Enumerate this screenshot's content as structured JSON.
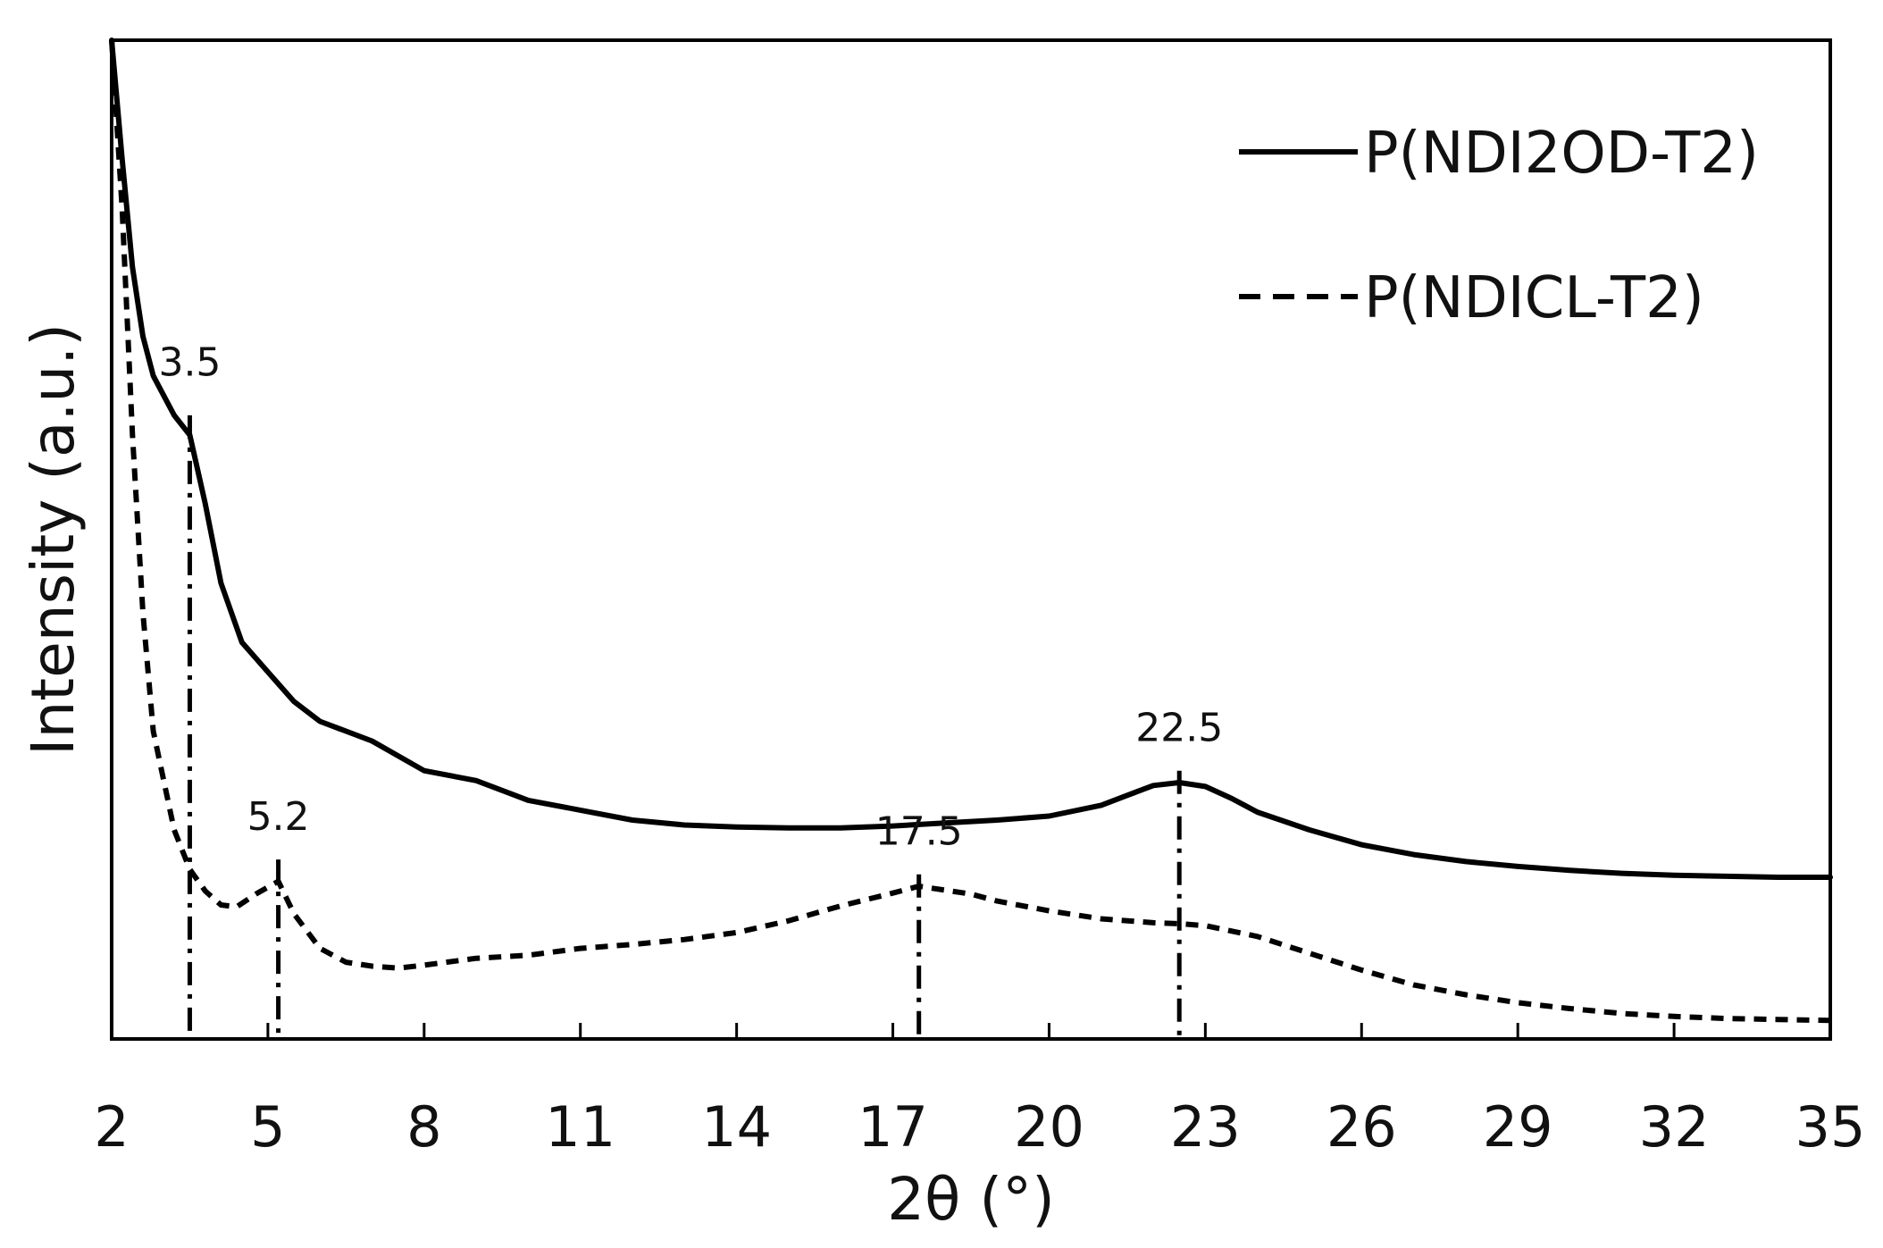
{
  "chart_data": {
    "type": "line",
    "xlabel": "2θ (°)",
    "ylabel": "Intensity (a.u.)",
    "xlim": [
      2,
      35
    ],
    "ylim": [
      0,
      100
    ],
    "x_ticks": [
      2,
      5,
      8,
      11,
      14,
      17,
      20,
      23,
      26,
      29,
      32,
      35
    ],
    "x_tick_labels": [
      "2",
      "5",
      "8",
      "11",
      "14",
      "17",
      "20",
      "23",
      "26",
      "29",
      "32",
      "35"
    ],
    "grid": false,
    "legend_position": "top-right",
    "series": [
      {
        "name": "P(NDI2OD-T2)",
        "line_style": "solid",
        "color": "#000000",
        "x": [
          2.0,
          2.2,
          2.4,
          2.6,
          2.8,
          3.0,
          3.2,
          3.5,
          3.8,
          4.1,
          4.5,
          5.0,
          5.5,
          6.0,
          7.0,
          8.0,
          9.0,
          10.0,
          11.0,
          12.0,
          13.0,
          14.0,
          15.0,
          16.0,
          17.0,
          18.0,
          19.0,
          20.0,
          21.0,
          21.5,
          22.0,
          22.5,
          23.0,
          23.5,
          24.0,
          25.0,
          26.0,
          27.0,
          28.0,
          29.0,
          30.0,
          31.0,
          32.0,
          33.0,
          34.0,
          35.0
        ],
        "values": [
          100,
          88,
          77,
          70,
          66,
          64,
          62,
          60,
          53,
          45,
          39,
          36,
          33,
          31,
          29,
          26,
          25,
          23,
          22,
          21,
          20.5,
          20.3,
          20.2,
          20.2,
          20.4,
          20.7,
          21.0,
          21.4,
          22.5,
          23.5,
          24.5,
          24.8,
          24.4,
          23.2,
          21.8,
          20.0,
          18.5,
          17.5,
          16.8,
          16.3,
          15.9,
          15.6,
          15.4,
          15.3,
          15.2,
          15.2
        ]
      },
      {
        "name": "P(NDICL-T2)",
        "line_style": "dashed",
        "color": "#000000",
        "x": [
          2.0,
          2.2,
          2.4,
          2.6,
          2.8,
          3.0,
          3.2,
          3.5,
          3.8,
          4.1,
          4.4,
          4.8,
          5.2,
          5.5,
          6.0,
          6.5,
          7.0,
          7.5,
          8.0,
          9.0,
          10.0,
          11.0,
          12.0,
          13.0,
          14.0,
          15.0,
          16.0,
          17.0,
          17.5,
          18.0,
          18.5,
          19.0,
          20.0,
          21.0,
          22.0,
          22.5,
          23.0,
          24.0,
          25.0,
          26.0,
          27.0,
          28.0,
          29.0,
          30.0,
          31.0,
          32.0,
          33.0,
          34.0,
          35.0
        ],
        "values": [
          100,
          83,
          60,
          42,
          30,
          25,
          20,
          16,
          13.8,
          12.4,
          12.2,
          13.6,
          14.8,
          11.5,
          8.0,
          6.6,
          6.2,
          6.0,
          6.3,
          7.0,
          7.3,
          8.0,
          8.4,
          8.9,
          9.6,
          10.8,
          12.3,
          13.6,
          14.3,
          13.9,
          13.5,
          12.8,
          11.8,
          11.0,
          10.6,
          10.5,
          10.3,
          9.2,
          7.5,
          5.8,
          4.3,
          3.3,
          2.5,
          1.9,
          1.4,
          1.1,
          0.9,
          0.8,
          0.7
        ]
      }
    ],
    "reference_lines": [
      {
        "x": 3.5,
        "label": "3.5",
        "y_top": 62,
        "label_y": 66
      },
      {
        "x": 5.2,
        "label": "5.2",
        "y_top": 17,
        "label_y": 20
      },
      {
        "x": 17.5,
        "label": "17.5",
        "y_top": 15.5,
        "label_y": 18.5
      },
      {
        "x": 22.5,
        "label": "22.5",
        "y_top": 26,
        "label_y": 29
      }
    ]
  }
}
